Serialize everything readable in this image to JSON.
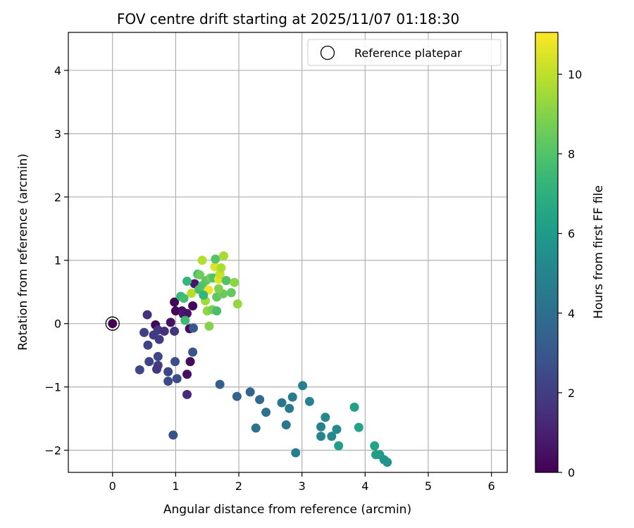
{
  "chart_data": {
    "type": "scatter",
    "title": "FOV centre drift starting at 2025/11/07 01:18:30",
    "xlabel": "Angular distance from reference (arcmin)",
    "ylabel": "Rotation from reference (arcmin)",
    "xlim": [
      -0.7,
      6.25
    ],
    "ylim": [
      -2.35,
      4.6
    ],
    "xticks": [
      0,
      1,
      2,
      3,
      4,
      5,
      6
    ],
    "yticks": [
      -2,
      -1,
      0,
      1,
      2,
      3,
      4
    ],
    "xtick_labels": [
      "0",
      "1",
      "2",
      "3",
      "4",
      "5",
      "6"
    ],
    "ytick_labels": [
      "−2",
      "−1",
      "0",
      "1",
      "2",
      "3",
      "4"
    ],
    "grid": true,
    "legend": {
      "position": "top-right",
      "label": "Reference platepar"
    },
    "reference_point": {
      "x": 0,
      "y": 0
    },
    "colorbar": {
      "label": "Hours from first FF file",
      "colormap": "viridis",
      "range": [
        0,
        11.05
      ],
      "ticks": [
        0,
        2,
        4,
        6,
        8,
        10
      ],
      "tick_labels": [
        "0",
        "2",
        "4",
        "6",
        "8",
        "10"
      ]
    },
    "points": [
      {
        "x": 0.0,
        "y": 0.0,
        "t": 0.0
      },
      {
        "x": 0.55,
        "y": 0.14,
        "t": 1.6
      },
      {
        "x": 0.68,
        "y": -0.02,
        "t": 0.2
      },
      {
        "x": 0.72,
        "y": -0.1,
        "t": 1.8
      },
      {
        "x": 0.82,
        "y": -0.12,
        "t": 1.5
      },
      {
        "x": 0.65,
        "y": -0.18,
        "t": 1.9
      },
      {
        "x": 0.74,
        "y": -0.25,
        "t": 2.0
      },
      {
        "x": 0.5,
        "y": -0.14,
        "t": 2.1
      },
      {
        "x": 0.56,
        "y": -0.34,
        "t": 2.2
      },
      {
        "x": 0.72,
        "y": -0.52,
        "t": 2.3
      },
      {
        "x": 0.58,
        "y": -0.6,
        "t": 2.2
      },
      {
        "x": 0.72,
        "y": -0.66,
        "t": 2.1
      },
      {
        "x": 0.7,
        "y": -0.72,
        "t": 1.8
      },
      {
        "x": 0.43,
        "y": -0.73,
        "t": 2.4
      },
      {
        "x": 0.88,
        "y": -0.76,
        "t": 2.3
      },
      {
        "x": 0.88,
        "y": -0.91,
        "t": 2.5
      },
      {
        "x": 0.99,
        "y": -0.6,
        "t": 2.7
      },
      {
        "x": 1.02,
        "y": -0.87,
        "t": 2.6
      },
      {
        "x": 0.96,
        "y": -1.76,
        "t": 2.8
      },
      {
        "x": 1.18,
        "y": -1.12,
        "t": 1.3
      },
      {
        "x": 0.92,
        "y": 0.02,
        "t": 0.5
      },
      {
        "x": 0.98,
        "y": -0.12,
        "t": 1.7
      },
      {
        "x": 0.98,
        "y": 0.34,
        "t": 0.1
      },
      {
        "x": 1.0,
        "y": 0.2,
        "t": 0.2
      },
      {
        "x": 1.1,
        "y": 0.2,
        "t": 0.4
      },
      {
        "x": 1.12,
        "y": 0.15,
        "t": 0.8
      },
      {
        "x": 1.18,
        "y": 0.16,
        "t": 0.6
      },
      {
        "x": 1.22,
        "y": -0.08,
        "t": 0.3
      },
      {
        "x": 1.27,
        "y": 0.28,
        "t": 0.2
      },
      {
        "x": 1.23,
        "y": -0.6,
        "t": 0.3
      },
      {
        "x": 1.18,
        "y": -0.8,
        "t": 0.5
      },
      {
        "x": 1.27,
        "y": -0.45,
        "t": 2.9
      },
      {
        "x": 1.28,
        "y": -0.07,
        "t": 3.0
      },
      {
        "x": 1.3,
        "y": 0.63,
        "t": 0.7
      },
      {
        "x": 1.7,
        "y": -0.96,
        "t": 3.3
      },
      {
        "x": 1.97,
        "y": -1.15,
        "t": 3.5
      },
      {
        "x": 2.18,
        "y": -1.08,
        "t": 3.6
      },
      {
        "x": 2.33,
        "y": -1.2,
        "t": 3.8
      },
      {
        "x": 2.43,
        "y": -1.4,
        "t": 4.1
      },
      {
        "x": 2.27,
        "y": -1.65,
        "t": 4.2
      },
      {
        "x": 2.68,
        "y": -1.25,
        "t": 4.3
      },
      {
        "x": 2.75,
        "y": -1.6,
        "t": 4.4
      },
      {
        "x": 2.8,
        "y": -1.34,
        "t": 4.5
      },
      {
        "x": 2.85,
        "y": -1.16,
        "t": 4.6
      },
      {
        "x": 2.9,
        "y": -2.04,
        "t": 4.7
      },
      {
        "x": 3.01,
        "y": -0.98,
        "t": 4.8
      },
      {
        "x": 3.12,
        "y": -1.23,
        "t": 4.9
      },
      {
        "x": 3.3,
        "y": -1.63,
        "t": 4.8
      },
      {
        "x": 3.3,
        "y": -1.78,
        "t": 5.0
      },
      {
        "x": 3.37,
        "y": -1.48,
        "t": 5.1
      },
      {
        "x": 3.47,
        "y": -1.78,
        "t": 5.2
      },
      {
        "x": 3.55,
        "y": -1.67,
        "t": 5.3
      },
      {
        "x": 3.58,
        "y": -1.93,
        "t": 6.2
      },
      {
        "x": 3.83,
        "y": -1.32,
        "t": 6.3
      },
      {
        "x": 3.9,
        "y": -1.64,
        "t": 6.4
      },
      {
        "x": 4.15,
        "y": -1.93,
        "t": 6.4
      },
      {
        "x": 4.17,
        "y": -2.07,
        "t": 6.3
      },
      {
        "x": 4.23,
        "y": -2.07,
        "t": 6.1
      },
      {
        "x": 4.3,
        "y": -2.15,
        "t": 5.8
      },
      {
        "x": 4.35,
        "y": -2.19,
        "t": 5.7
      },
      {
        "x": 1.15,
        "y": 0.05,
        "t": 7.6
      },
      {
        "x": 1.08,
        "y": 0.43,
        "t": 7.4
      },
      {
        "x": 1.13,
        "y": 0.4,
        "t": 7.7
      },
      {
        "x": 1.18,
        "y": 0.67,
        "t": 7.3
      },
      {
        "x": 1.25,
        "y": 0.48,
        "t": 9.9
      },
      {
        "x": 1.35,
        "y": 0.78,
        "t": 7.5
      },
      {
        "x": 1.37,
        "y": 0.54,
        "t": 7.8
      },
      {
        "x": 1.42,
        "y": 0.6,
        "t": 7.9
      },
      {
        "x": 1.38,
        "y": 0.77,
        "t": 8.6
      },
      {
        "x": 1.42,
        "y": 1.0,
        "t": 9.8
      },
      {
        "x": 1.48,
        "y": 0.68,
        "t": 8.2
      },
      {
        "x": 1.47,
        "y": 0.36,
        "t": 9.5
      },
      {
        "x": 1.52,
        "y": 0.53,
        "t": 10.8
      },
      {
        "x": 1.5,
        "y": 0.2,
        "t": 9.2
      },
      {
        "x": 1.55,
        "y": 0.72,
        "t": 8.7
      },
      {
        "x": 1.53,
        "y": -0.04,
        "t": 9.0
      },
      {
        "x": 1.58,
        "y": 0.22,
        "t": 8.8
      },
      {
        "x": 1.6,
        "y": 0.72,
        "t": 7.9
      },
      {
        "x": 1.62,
        "y": 0.9,
        "t": 10.5
      },
      {
        "x": 1.63,
        "y": 1.02,
        "t": 8.1
      },
      {
        "x": 1.65,
        "y": 0.42,
        "t": 8.3
      },
      {
        "x": 1.65,
        "y": 0.2,
        "t": 7.8
      },
      {
        "x": 1.68,
        "y": 0.7,
        "t": 10.6
      },
      {
        "x": 1.7,
        "y": 0.78,
        "t": 10.2
      },
      {
        "x": 1.72,
        "y": 0.88,
        "t": 9.7
      },
      {
        "x": 1.75,
        "y": 0.47,
        "t": 8.5
      },
      {
        "x": 1.76,
        "y": 1.07,
        "t": 9.6
      },
      {
        "x": 1.8,
        "y": 0.68,
        "t": 8.0
      },
      {
        "x": 1.88,
        "y": 0.49,
        "t": 8.4
      },
      {
        "x": 1.93,
        "y": 0.65,
        "t": 9.1
      },
      {
        "x": 1.98,
        "y": 0.31,
        "t": 9.3
      },
      {
        "x": 1.68,
        "y": 0.55,
        "t": 8.9
      },
      {
        "x": 1.44,
        "y": 0.45,
        "t": 7.2
      }
    ]
  }
}
